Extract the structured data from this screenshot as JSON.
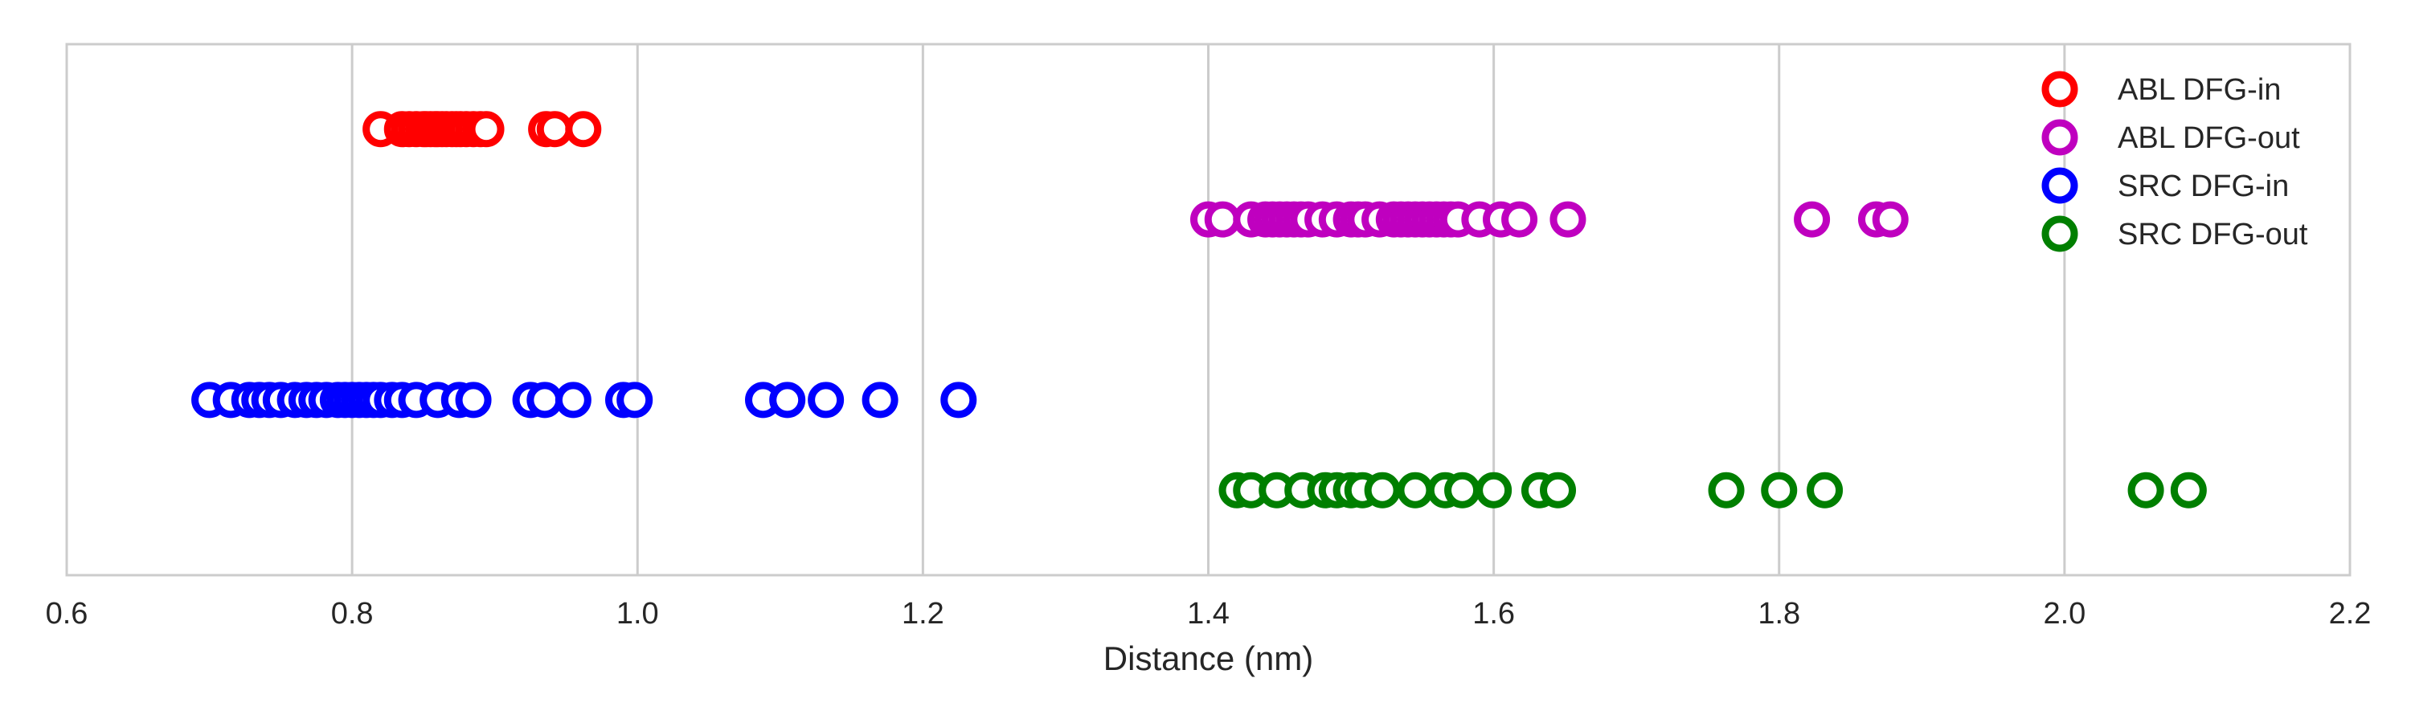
{
  "chart_data": {
    "type": "scatter",
    "title": "",
    "xlabel": "Distance (nm)",
    "ylabel": "",
    "xlim": [
      0.6,
      2.2
    ],
    "xticks": [
      0.6,
      0.8,
      1.0,
      1.2,
      1.4,
      1.6,
      1.8,
      2.0,
      2.2
    ],
    "xtick_labels": [
      "0.6",
      "0.8",
      "1.0",
      "1.2",
      "1.4",
      "1.6",
      "1.8",
      "2.0",
      "2.2"
    ],
    "ylim": [
      0,
      1
    ],
    "grid": "vertical",
    "legend_position": "top-right",
    "marker": "hollow-circle",
    "series": [
      {
        "name": "ABL DFG-in",
        "color": "#ff0000",
        "y": 0.84,
        "x": [
          0.82,
          0.835,
          0.84,
          0.845,
          0.85,
          0.852,
          0.855,
          0.858,
          0.86,
          0.863,
          0.866,
          0.87,
          0.873,
          0.876,
          0.88,
          0.885,
          0.89,
          0.894,
          0.936,
          0.942,
          0.962
        ]
      },
      {
        "name": "ABL DFG-out",
        "color": "#bf00bf",
        "y": 0.67,
        "x": [
          1.4,
          1.41,
          1.43,
          1.44,
          1.445,
          1.45,
          1.455,
          1.46,
          1.465,
          1.47,
          1.48,
          1.49,
          1.5,
          1.505,
          1.51,
          1.52,
          1.53,
          1.535,
          1.54,
          1.545,
          1.55,
          1.555,
          1.56,
          1.565,
          1.57,
          1.575,
          1.59,
          1.605,
          1.618,
          1.652,
          1.823,
          1.868,
          1.878
        ]
      },
      {
        "name": "SRC DFG-in",
        "color": "#0000ff",
        "y": 0.33,
        "x": [
          0.7,
          0.715,
          0.728,
          0.735,
          0.742,
          0.75,
          0.76,
          0.768,
          0.775,
          0.782,
          0.79,
          0.795,
          0.8,
          0.805,
          0.81,
          0.815,
          0.82,
          0.828,
          0.835,
          0.845,
          0.86,
          0.875,
          0.885,
          0.925,
          0.935,
          0.955,
          0.99,
          0.998,
          1.088,
          1.105,
          1.132,
          1.17,
          1.225
        ]
      },
      {
        "name": "SRC DFG-out",
        "color": "#007f00",
        "y": 0.16,
        "x": [
          1.42,
          1.43,
          1.448,
          1.466,
          1.482,
          1.49,
          1.5,
          1.508,
          1.522,
          1.545,
          1.566,
          1.578,
          1.6,
          1.632,
          1.645,
          1.763,
          1.8,
          1.832,
          2.057,
          2.087
        ]
      }
    ]
  }
}
